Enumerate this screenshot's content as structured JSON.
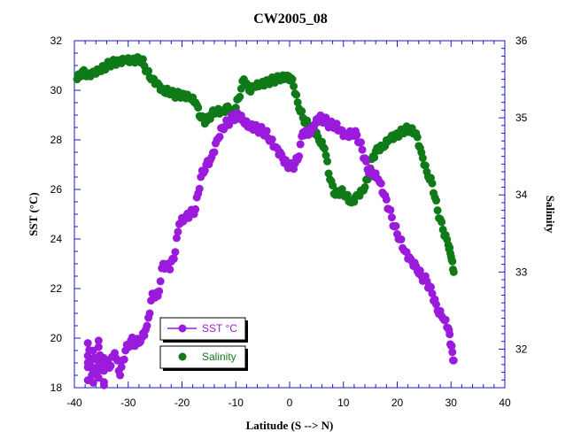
{
  "chart_data": {
    "type": "scatter",
    "title": "CW2005_08",
    "xlabel": "Latitude (S --> N)",
    "ylabel": "SST (°C)",
    "y2label": "Salinity",
    "xlim": [
      -40,
      40
    ],
    "ylim": [
      18,
      32
    ],
    "y2lim": [
      31.5,
      36
    ],
    "xticks": [
      "-40",
      "-30",
      "-20",
      "-10",
      "0",
      "10",
      "20",
      "30",
      "40"
    ],
    "yticks": [
      "18",
      "20",
      "22",
      "24",
      "26",
      "28",
      "30",
      "32"
    ],
    "y2ticks": [
      "32",
      "33",
      "34",
      "35",
      "36"
    ],
    "grid": false,
    "legend_position": "bottom-left",
    "series": [
      {
        "name": "SST °C",
        "axis": "left",
        "color": "#9B1BDC",
        "marker": "circle",
        "points": [
          [
            -37.5,
            18.3
          ],
          [
            -37.5,
            19.8
          ],
          [
            -36.5,
            18.2
          ],
          [
            -36.5,
            19.5
          ],
          [
            -35.5,
            18.4
          ],
          [
            -35.5,
            19.9
          ],
          [
            -34.5,
            18.1
          ],
          [
            -34.5,
            19.2
          ],
          [
            -33.5,
            18.8
          ],
          [
            -32.5,
            19.4
          ],
          [
            -31.5,
            18.5
          ],
          [
            -30.5,
            19.5
          ],
          [
            -29.5,
            19.9
          ],
          [
            -28.5,
            19.8
          ],
          [
            -27.5,
            20.0
          ],
          [
            -26.5,
            20.5
          ],
          [
            -25.5,
            21.8
          ],
          [
            -24.5,
            21.7
          ],
          [
            -23.5,
            23.0
          ],
          [
            -22.5,
            22.8
          ],
          [
            -21.5,
            23.2
          ],
          [
            -20.5,
            24.6
          ],
          [
            -19.5,
            24.8
          ],
          [
            -18.5,
            25.0
          ],
          [
            -17.5,
            25.2
          ],
          [
            -16.5,
            26.5
          ],
          [
            -15.5,
            27.0
          ],
          [
            -14.5,
            27.3
          ],
          [
            -13.5,
            28.0
          ],
          [
            -12.5,
            28.5
          ],
          [
            -11.5,
            28.7
          ],
          [
            -10.5,
            28.9
          ],
          [
            -9.5,
            29.0
          ],
          [
            -8.5,
            28.7
          ],
          [
            -7.5,
            28.5
          ],
          [
            -6.5,
            28.5
          ],
          [
            -5.5,
            28.4
          ],
          [
            -4.5,
            28.3
          ],
          [
            -3.5,
            28.0
          ],
          [
            -2.5,
            27.7
          ],
          [
            -1.5,
            27.4
          ],
          [
            -0.5,
            27.0
          ],
          [
            0.5,
            26.9
          ],
          [
            1.5,
            27.2
          ],
          [
            2.5,
            28.3
          ],
          [
            3.5,
            28.2
          ],
          [
            4.5,
            28.5
          ],
          [
            5.5,
            28.9
          ],
          [
            6.5,
            28.8
          ],
          [
            7.5,
            28.6
          ],
          [
            8.5,
            28.6
          ],
          [
            9.5,
            28.4
          ],
          [
            10.5,
            28.2
          ],
          [
            11.5,
            28.3
          ],
          [
            12.5,
            28.2
          ],
          [
            13.5,
            27.6
          ],
          [
            14.5,
            26.8
          ],
          [
            15.5,
            26.6
          ],
          [
            16.5,
            26.4
          ],
          [
            17.5,
            25.8
          ],
          [
            18.5,
            25.2
          ],
          [
            19.5,
            24.5
          ],
          [
            20.5,
            24.0
          ],
          [
            21.5,
            23.5
          ],
          [
            22.5,
            23.2
          ],
          [
            23.5,
            22.9
          ],
          [
            24.5,
            22.5
          ],
          [
            25.5,
            22.3
          ],
          [
            26.5,
            21.8
          ],
          [
            27.5,
            21.1
          ],
          [
            28.5,
            20.8
          ],
          [
            29.5,
            20.4
          ],
          [
            30.0,
            19.7
          ],
          [
            30.5,
            19.1
          ]
        ]
      },
      {
        "name": "Salinity",
        "axis": "right",
        "color": "#0F7A17",
        "marker": "circle",
        "points": [
          [
            -39.5,
            35.5
          ],
          [
            -38.5,
            35.6
          ],
          [
            -37.5,
            35.55
          ],
          [
            -36.5,
            35.6
          ],
          [
            -35.5,
            35.62
          ],
          [
            -34.5,
            35.65
          ],
          [
            -33.5,
            35.7
          ],
          [
            -32.5,
            35.72
          ],
          [
            -31.5,
            35.72
          ],
          [
            -30.5,
            35.74
          ],
          [
            -29.5,
            35.73
          ],
          [
            -28.5,
            35.75
          ],
          [
            -27.5,
            35.76
          ],
          [
            -26.5,
            35.6
          ],
          [
            -25.5,
            35.5
          ],
          [
            -24.5,
            35.45
          ],
          [
            -23.5,
            35.35
          ],
          [
            -22.5,
            35.35
          ],
          [
            -21.5,
            35.3
          ],
          [
            -20.5,
            35.3
          ],
          [
            -19.5,
            35.28
          ],
          [
            -18.5,
            35.25
          ],
          [
            -17.5,
            35.2
          ],
          [
            -16.5,
            35.0
          ],
          [
            -15.5,
            34.95
          ],
          [
            -14.5,
            35.05
          ],
          [
            -13.5,
            35.1
          ],
          [
            -12.5,
            35.08
          ],
          [
            -11.5,
            35.15
          ],
          [
            -10.5,
            35.05
          ],
          [
            -9.5,
            35.25
          ],
          [
            -8.5,
            35.5
          ],
          [
            -7.5,
            35.35
          ],
          [
            -6.5,
            35.4
          ],
          [
            -5.5,
            35.42
          ],
          [
            -4.5,
            35.45
          ],
          [
            -3.5,
            35.48
          ],
          [
            -2.5,
            35.5
          ],
          [
            -1.5,
            35.52
          ],
          [
            -0.5,
            35.55
          ],
          [
            0.5,
            35.5
          ],
          [
            1.5,
            35.2
          ],
          [
            2.5,
            35.0
          ],
          [
            3.5,
            34.9
          ],
          [
            4.5,
            34.85
          ],
          [
            5.5,
            34.7
          ],
          [
            6.5,
            34.6
          ],
          [
            7.5,
            34.2
          ],
          [
            8.5,
            34.0
          ],
          [
            9.5,
            34.05
          ],
          [
            10.5,
            34.0
          ],
          [
            11.5,
            33.9
          ],
          [
            12.5,
            34.0
          ],
          [
            13.5,
            34.05
          ],
          [
            14.5,
            34.2
          ],
          [
            15.5,
            34.5
          ],
          [
            16.5,
            34.6
          ],
          [
            17.5,
            34.62
          ],
          [
            18.5,
            34.72
          ],
          [
            19.5,
            34.75
          ],
          [
            20.5,
            34.8
          ],
          [
            21.5,
            34.85
          ],
          [
            22.5,
            34.85
          ],
          [
            23.5,
            34.8
          ],
          [
            24.5,
            34.55
          ],
          [
            25.5,
            34.3
          ],
          [
            26.5,
            34.15
          ],
          [
            27.5,
            33.8
          ],
          [
            28.5,
            33.55
          ],
          [
            29.5,
            33.35
          ],
          [
            30.0,
            33.2
          ],
          [
            30.5,
            33.0
          ]
        ]
      }
    ]
  }
}
